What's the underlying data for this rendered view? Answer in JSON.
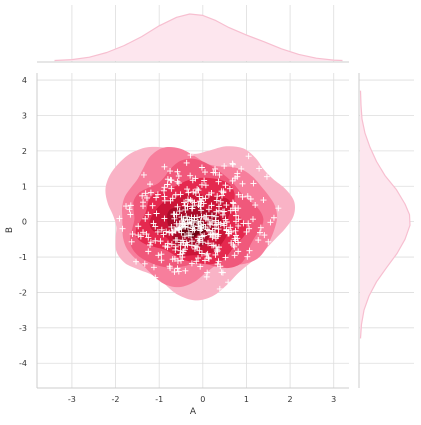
{
  "chart_data": {
    "type": "scatter",
    "subtype": "jointplot-kde",
    "xlabel": "A",
    "ylabel": "B",
    "xlim": [
      -3.8,
      3.35
    ],
    "ylim": [
      -4.7,
      4.2
    ],
    "xticks": [
      -3,
      -2,
      -1,
      0,
      1,
      2,
      3
    ],
    "yticks": [
      -4,
      -3,
      -2,
      -1,
      0,
      1,
      2,
      3,
      4
    ],
    "grid": true,
    "marker": "+",
    "marker_color": "#ffffff",
    "colors": {
      "kde_levels": [
        "#f9b3c6",
        "#f77e9c",
        "#f0587b",
        "#e5294f",
        "#cc1538",
        "#a80c2a",
        "#6e0414"
      ],
      "marginal_line": "#f7bfd0",
      "marginal_fill": "#fde6ee",
      "grid": "#dddddd",
      "axis": "#cccccc"
    },
    "kde_contours": {
      "level_count": 7,
      "outer_region": {
        "x_range": [
          -2.4,
          2.05
        ],
        "y_range": [
          -2.05,
          2.4
        ]
      },
      "peak": [
        -0.25,
        -0.15
      ]
    },
    "marginal_x": {
      "grid": [
        -3.4,
        -3.0,
        -2.6,
        -2.2,
        -1.8,
        -1.4,
        -1.0,
        -0.6,
        -0.3,
        0.0,
        0.3,
        0.6,
        1.0,
        1.4,
        1.8,
        2.2,
        2.6,
        3.0,
        3.2
      ],
      "density": [
        0.01,
        0.03,
        0.08,
        0.18,
        0.33,
        0.52,
        0.75,
        0.93,
        1.0,
        0.97,
        0.86,
        0.71,
        0.55,
        0.41,
        0.26,
        0.14,
        0.06,
        0.02,
        0.01
      ]
    },
    "marginal_y": {
      "grid": [
        -3.3,
        -2.9,
        -2.5,
        -2.1,
        -1.7,
        -1.3,
        -0.9,
        -0.5,
        -0.1,
        0.2,
        0.5,
        0.9,
        1.3,
        1.7,
        2.1,
        2.5,
        2.9,
        3.3,
        3.7
      ],
      "density": [
        0.01,
        0.03,
        0.08,
        0.18,
        0.33,
        0.53,
        0.74,
        0.9,
        1.0,
        0.99,
        0.9,
        0.73,
        0.5,
        0.33,
        0.2,
        0.1,
        0.04,
        0.02,
        0.01
      ]
    },
    "points": [
      [
        -0.46,
        -0.07
      ],
      [
        -0.51,
        0.77
      ],
      [
        -0.34,
        -0.05
      ],
      [
        -0.72,
        0.93
      ],
      [
        -0.08,
        -0.82
      ],
      [
        1.55,
        -0.02
      ],
      [
        -0.95,
        -0.92
      ],
      [
        -0.41,
        -0.78
      ],
      [
        -0.35,
        0.43
      ],
      [
        -0.57,
        -0.17
      ],
      [
        1.29,
        1.5
      ],
      [
        -1.28,
        0.67
      ],
      [
        -0.64,
        -1.05
      ],
      [
        -0.88,
        0.71
      ],
      [
        -0.07,
        0.58
      ],
      [
        0.6,
        -0.33
      ],
      [
        -0.55,
        1.29
      ],
      [
        0.28,
        -0.1
      ],
      [
        1.15,
        0.07
      ],
      [
        0.05,
        1.4
      ],
      [
        -0.63,
        -0.8
      ],
      [
        0.75,
        -0.53
      ],
      [
        -0.25,
        -1.18
      ],
      [
        -0.71,
        -0.3
      ],
      [
        -0.77,
        -0.31
      ],
      [
        0.36,
        -0.03
      ],
      [
        -0.1,
        0.47
      ],
      [
        -0.57,
        -1.11
      ],
      [
        -0.84,
        -0.28
      ],
      [
        -0.23,
        -0.25
      ],
      [
        0.03,
        1.16
      ],
      [
        0.3,
        0.14
      ],
      [
        -0.44,
        -0.84
      ],
      [
        -0.4,
        -1.39
      ],
      [
        0.13,
        -1.02
      ],
      [
        -1.12,
        -1.29
      ],
      [
        0.36,
        -1.12
      ],
      [
        -0.53,
        0.3
      ],
      [
        -0.55,
        -0.23
      ],
      [
        -1.19,
        -0.58
      ],
      [
        -0.19,
        0.54
      ],
      [
        1.33,
        -0.17
      ],
      [
        -1.48,
        -0.38
      ],
      [
        0.31,
        0.28
      ],
      [
        0.14,
        0.35
      ],
      [
        -1.03,
        -0.29
      ],
      [
        -0.34,
        0.63
      ],
      [
        -0.13,
        -0.72
      ],
      [
        -0.11,
        -0.01
      ],
      [
        0.7,
        0.51
      ],
      [
        0.03,
        -0.39
      ],
      [
        -0.9,
        -0.36
      ],
      [
        1.31,
        -0.31
      ],
      [
        -0.37,
        -0.59
      ],
      [
        -0.94,
        -0.23
      ],
      [
        0.76,
        -0.39
      ],
      [
        0.14,
        -0.25
      ],
      [
        -0.3,
        0.06
      ],
      [
        0.46,
        0.19
      ],
      [
        0.69,
        1.61
      ],
      [
        0.49,
        -0.11
      ],
      [
        0.47,
        0.82
      ],
      [
        -0.86,
        -0.69
      ],
      [
        -0.11,
        -0.14
      ],
      [
        1.16,
        -1.27
      ],
      [
        0.43,
        0.86
      ],
      [
        0.14,
        -1.05
      ],
      [
        -0.65,
        0.08
      ],
      [
        -0.23,
        1.17
      ],
      [
        0.41,
        0.56
      ],
      [
        0.52,
        0.06
      ],
      [
        0.0,
        0.65
      ],
      [
        0.79,
        1.27
      ],
      [
        -1.37,
        -1.75
      ],
      [
        0.25,
        -0.67
      ],
      [
        -0.44,
        -0.6
      ],
      [
        1.04,
        -0.05
      ],
      [
        0.43,
        -1.43
      ],
      [
        0.79,
        -0.47
      ],
      [
        0.2,
        0.81
      ],
      [
        -0.32,
        -0.38
      ],
      [
        -0.47,
        -0.91
      ],
      [
        -0.02,
        1.53
      ],
      [
        -0.81,
        -0.72
      ],
      [
        0.39,
        -1.9
      ],
      [
        1.63,
        0.11
      ],
      [
        0.25,
        -0.37
      ],
      [
        1.47,
        1.27
      ],
      [
        -0.03,
        0.14
      ],
      [
        1.55,
        -0.82
      ],
      [
        0.36,
        -0.21
      ],
      [
        0.73,
        -0.95
      ],
      [
        -0.4,
        -0.14
      ],
      [
        -1.39,
        0.73
      ],
      [
        -0.57,
        -0.19
      ],
      [
        0.81,
        -0.59
      ],
      [
        -0.08,
        -0.48
      ],
      [
        -1.09,
        -0.54
      ],
      [
        1.42,
        -1.15
      ],
      [
        -1.63,
        -0.57
      ],
      [
        0.33,
        0.72
      ],
      [
        -0.74,
        0.59
      ],
      [
        -0.46,
        -0.04
      ],
      [
        -0.88,
        0.97
      ],
      [
        -0.01,
        -0.42
      ],
      [
        0.82,
        0.07
      ],
      [
        -0.16,
        -0.69
      ],
      [
        -1.31,
        0.8
      ],
      [
        -0.6,
        -0.06
      ],
      [
        -0.58,
        1.41
      ],
      [
        -1.15,
        0.45
      ],
      [
        0.91,
        1.07
      ],
      [
        1.07,
        -0.82
      ],
      [
        0.2,
        0.46
      ],
      [
        0.68,
        1.64
      ],
      [
        0.7,
        -0.66
      ],
      [
        -0.4,
        -0.67
      ],
      [
        -0.24,
        -0.19
      ],
      [
        0.02,
        0.51
      ],
      [
        -0.03,
        -0.2
      ],
      [
        -0.34,
        -0.16
      ],
      [
        1.36,
        -1.29
      ],
      [
        -1.25,
        0.2
      ],
      [
        -1.09,
        -0.14
      ],
      [
        -0.28,
        0.61
      ],
      [
        0.47,
        0.86
      ],
      [
        -1.42,
        -0.42
      ],
      [
        -0.46,
        -0.53
      ],
      [
        -0.02,
        -0.9
      ],
      [
        -0.54,
        -0.22
      ],
      [
        -1.37,
        -0.3
      ],
      [
        0.75,
        0.32
      ],
      [
        0.54,
        -0.22
      ],
      [
        0.93,
        -0.05
      ],
      [
        -0.47,
        -1.0
      ],
      [
        -1.61,
        -0.35
      ],
      [
        0.1,
        -1.44
      ],
      [
        0.01,
        -0.08
      ],
      [
        -0.4,
        0.33
      ],
      [
        -1.03,
        0.77
      ],
      [
        0.62,
        0.93
      ],
      [
        -1.33,
        -1.19
      ],
      [
        0.21,
        -0.67
      ],
      [
        -0.41,
        0.45
      ],
      [
        -0.08,
        0.71
      ],
      [
        -0.24,
        0.37
      ],
      [
        0.29,
        -0.94
      ],
      [
        -1.21,
        1.06
      ],
      [
        -0.88,
        1.55
      ],
      [
        -0.69,
        -0.29
      ],
      [
        0.08,
        -0.94
      ],
      [
        0.17,
        -0.09
      ],
      [
        -0.04,
        -0.11
      ],
      [
        0.81,
        0.38
      ],
      [
        -0.09,
        -0.06
      ],
      [
        -1.66,
        0.2
      ],
      [
        0.72,
        -0.71
      ],
      [
        1.15,
        -1.71
      ],
      [
        -0.71,
        -0.64
      ],
      [
        -0.95,
        -1.09
      ],
      [
        -0.58,
        0.42
      ],
      [
        0.69,
        0.54
      ],
      [
        0.69,
        0.38
      ],
      [
        0.07,
        1.03
      ],
      [
        0.34,
        -1.2
      ],
      [
        0.68,
        1.15
      ],
      [
        -0.53,
        -0.06
      ],
      [
        0.22,
        -0.26
      ],
      [
        -0.58,
        1.13
      ],
      [
        0.06,
        -0.15
      ],
      [
        1.41,
        -0.38
      ],
      [
        -0.97,
        -0.55
      ],
      [
        -0.25,
        -0.55
      ],
      [
        -0.04,
        0.32
      ],
      [
        0.22,
        -0.44
      ],
      [
        -0.51,
        -0.82
      ],
      [
        -0.41,
        -0.41
      ],
      [
        -0.8,
        1.2
      ],
      [
        0.81,
        -0.84
      ],
      [
        1.0,
        -0.29
      ],
      [
        -0.33,
        0.82
      ],
      [
        -0.09,
        -0.58
      ],
      [
        0.05,
        -1.1
      ],
      [
        0.3,
        -0.71
      ],
      [
        -1.25,
        -0.84
      ],
      [
        -0.13,
        0.92
      ],
      [
        -0.25,
        0.58
      ],
      [
        0.38,
        1.32
      ],
      [
        -0.37,
        1.66
      ],
      [
        0.44,
        0.74
      ],
      [
        -0.59,
        -0.52
      ],
      [
        0.82,
        0.76
      ],
      [
        1.85,
        1.44
      ],
      [
        1.73,
        0.38
      ],
      [
        0.64,
        0.31
      ],
      [
        -0.62,
        -0.26
      ],
      [
        -0.38,
        0.15
      ],
      [
        0.54,
        0.47
      ],
      [
        -0.49,
        -0.31
      ],
      [
        0.79,
        1.36
      ],
      [
        -0.62,
        -0.71
      ],
      [
        0.14,
        0.76
      ],
      [
        -0.25,
        -0.67
      ],
      [
        -0.89,
        0.87
      ],
      [
        -1.53,
        -1.13
      ],
      [
        -1.13,
        -0.05
      ],
      [
        -1.32,
        0.08
      ],
      [
        -0.74,
        1.18
      ],
      [
        0.12,
        -0.61
      ],
      [
        -0.05,
        0.01
      ],
      [
        0.34,
        -0.41
      ],
      [
        1.72,
        -0.86
      ],
      [
        -0.51,
        -0.66
      ],
      [
        1.02,
        -0.99
      ],
      [
        -0.05,
        0.57
      ],
      [
        -0.34,
        -0.03
      ],
      [
        -0.2,
        0.03
      ],
      [
        -0.67,
        0.21
      ],
      [
        -0.36,
        0.92
      ],
      [
        0.46,
        0.28
      ],
      [
        0.76,
        0.01
      ],
      [
        -0.28,
        1.88
      ],
      [
        0.03,
        0.13
      ],
      [
        0.49,
        0.29
      ],
      [
        -0.23,
        0.44
      ],
      [
        -0.76,
        -1.26
      ],
      [
        -0.72,
        1.17
      ],
      [
        0.48,
        -0.05
      ],
      [
        1.72,
        -0.91
      ],
      [
        -1.06,
        0.23
      ],
      [
        0.17,
        -0.37
      ],
      [
        0.28,
        -0.19
      ],
      [
        -0.13,
        0.12
      ],
      [
        0.63,
        -0.16
      ],
      [
        -1.35,
        1.32
      ],
      [
        0.33,
        -0.85
      ],
      [
        1.2,
        0.47
      ],
      [
        -1.21,
        -0.66
      ],
      [
        1.16,
        1.08
      ],
      [
        1.06,
        -0.2
      ],
      [
        -0.65,
        -1.42
      ],
      [
        -0.75,
        1.43
      ],
      [
        -1.25,
        -0.45
      ],
      [
        -0.8,
        -0.62
      ],
      [
        0.41,
        -0.07
      ],
      [
        -0.69,
        -1.06
      ],
      [
        -0.32,
        -0.32
      ],
      [
        0.16,
        -0.06
      ],
      [
        -0.48,
        0.02
      ],
      [
        -0.35,
        -0.65
      ],
      [
        0.37,
        0.31
      ],
      [
        -0.02,
        1.04
      ],
      [
        -0.47,
        -0.12
      ],
      [
        1.05,
        1.85
      ],
      [
        -1.07,
        0.68
      ],
      [
        0.12,
        0.05
      ],
      [
        -0.55,
        -1.41
      ],
      [
        0.91,
        0.7
      ],
      [
        -0.22,
        0.84
      ],
      [
        0.81,
        -0.12
      ],
      [
        0.24,
        1.39
      ],
      [
        -1.84,
        -0.2
      ],
      [
        -1.37,
        0.44
      ],
      [
        -0.18,
        -0.77
      ],
      [
        -1.48,
        -0.13
      ],
      [
        -1.91,
        0.09
      ],
      [
        0.74,
        1.23
      ],
      [
        -0.81,
        1.05
      ],
      [
        0.88,
        1.49
      ],
      [
        -0.07,
        -0.53
      ],
      [
        0.21,
        0.17
      ],
      [
        -1.29,
        -0.35
      ],
      [
        1.88,
        1.09
      ],
      [
        0.08,
        0.17
      ],
      [
        0.49,
        1.57
      ],
      [
        0.34,
        -0.81
      ],
      [
        0.65,
        -0.6
      ],
      [
        -0.5,
        -1.1
      ],
      [
        -0.11,
        -0.48
      ],
      [
        -0.25,
        0.37
      ],
      [
        0.32,
        0.6
      ],
      [
        -0.17,
        1.22
      ],
      [
        -1.02,
        -0.95
      ],
      [
        0.36,
        1.13
      ],
      [
        -0.19,
        -0.23
      ],
      [
        -0.43,
        0.54
      ],
      [
        0.54,
        -0.25
      ],
      [
        -0.75,
        -1.31
      ],
      [
        0.21,
        -0.01
      ],
      [
        0.55,
        -0.01
      ],
      [
        -1.68,
        0.35
      ],
      [
        0.32,
        -0.08
      ],
      [
        -0.19,
        0.11
      ],
      [
        0.36,
        -0.36
      ],
      [
        -1.76,
        0.44
      ],
      [
        -0.06,
        -0.21
      ],
      [
        0.19,
        -0.35
      ],
      [
        1.39,
        0.61
      ],
      [
        -0.5,
        -0.59
      ],
      [
        1.5,
        -0.57
      ],
      [
        -0.88,
        0.09
      ],
      [
        -0.29,
        1.3
      ],
      [
        1.27,
        -0.52
      ],
      [
        0.28,
        1.49
      ],
      [
        -0.45,
        0.02
      ],
      [
        -1.19,
        0.82
      ],
      [
        -1.09,
        -1.58
      ],
      [
        -0.06,
        0.43
      ],
      [
        1.1,
        0.64
      ],
      [
        -0.54,
        -0.19
      ],
      [
        -0.1,
        0.89
      ],
      [
        -0.27,
        -0.07
      ],
      [
        -0.69,
        0.66
      ],
      [
        0.37,
        -0.72
      ],
      [
        0.0,
        -0.58
      ],
      [
        0.6,
        -0.28
      ],
      [
        -0.21,
        -0.12
      ],
      [
        -1.37,
        0.55
      ],
      [
        -0.6,
        0.2
      ],
      [
        0.29,
        1.38
      ],
      [
        -0.06,
        -1.27
      ],
      [
        -0.87,
        0.59
      ],
      [
        -0.26,
        0.12
      ],
      [
        0.76,
        0.17
      ],
      [
        -0.11,
        -1.03
      ],
      [
        0.52,
        1.03
      ],
      [
        0.75,
        -0.26
      ],
      [
        0.09,
        -1.56
      ],
      [
        0.52,
        -1.01
      ],
      [
        1.03,
        0.72
      ],
      [
        -0.65,
        0.21
      ],
      [
        -0.15,
        -1.12
      ],
      [
        -0.42,
        -0.08
      ],
      [
        -0.62,
        0.76
      ],
      [
        -0.27,
        -0.4
      ],
      [
        -0.58,
        -1.32
      ],
      [
        0.06,
        0.66
      ],
      [
        0.37,
        0.43
      ],
      [
        -0.04,
        -0.41
      ],
      [
        0.29,
        0.03
      ],
      [
        0.3,
        -0.47
      ],
      [
        -0.52,
        -0.93
      ],
      [
        -0.55,
        1.09
      ],
      [
        0.32,
        -0.8
      ],
      [
        -1.65,
        0.46
      ],
      [
        0.11,
        -0.91
      ],
      [
        -0.49,
        0.13
      ],
      [
        -0.16,
        0.81
      ],
      [
        -0.03,
        0.57
      ],
      [
        0.4,
        -1.26
      ],
      [
        -0.72,
        -0.15
      ],
      [
        0.73,
        -0.48
      ],
      [
        -0.69,
        -0.32
      ],
      [
        0.28,
        -0.33
      ],
      [
        -0.34,
        0.58
      ],
      [
        0.58,
        -1.71
      ],
      [
        -0.62,
        -0.52
      ],
      [
        0.58,
        -0.34
      ],
      [
        0.46,
        -1.44
      ],
      [
        0.74,
        0.38
      ],
      [
        -0.64,
        -0.21
      ],
      [
        -0.04,
        -0.17
      ],
      [
        -0.05,
        0.44
      ],
      [
        0.65,
        -0.29
      ],
      [
        0.07,
        0.08
      ],
      [
        -0.5,
        -0.16
      ],
      [
        -0.25,
        -0.01
      ],
      [
        -0.43,
        -0.14
      ],
      [
        0.1,
        -0.22
      ],
      [
        -0.35,
        0.05
      ],
      [
        -0.06,
        -0.25
      ],
      [
        -0.44,
        0.07
      ]
    ]
  }
}
